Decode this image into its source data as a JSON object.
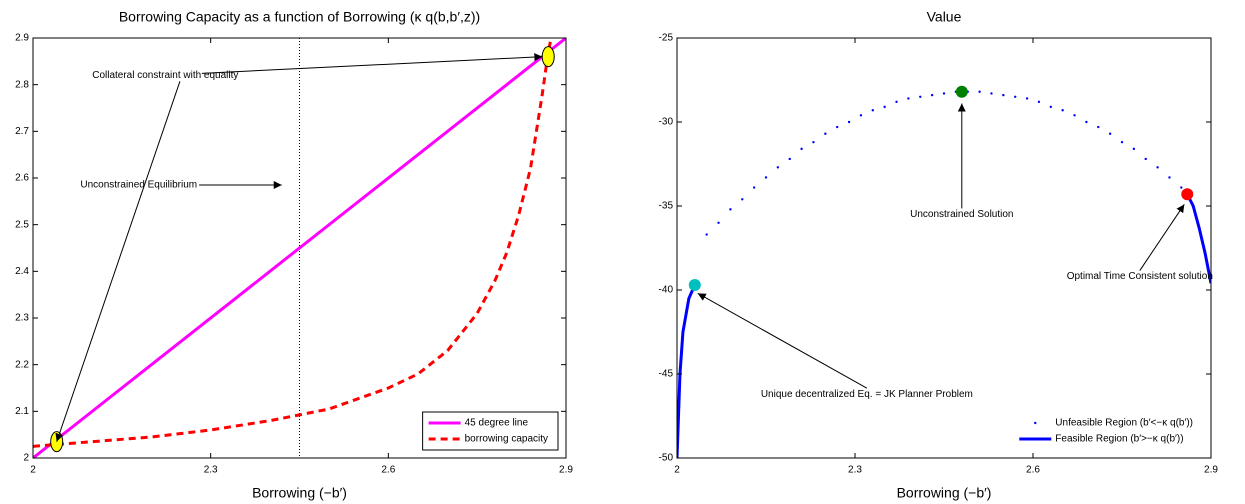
{
  "chart_data": [
    {
      "type": "line",
      "title": "Borrowing Capacity as a function of Borrowing (κ q(b,b′,z))",
      "xlabel": "Borrowing (−b′)",
      "xlim": [
        2,
        2.9
      ],
      "xticks": [
        2,
        2.3,
        2.6,
        2.9
      ],
      "ylim": [
        2,
        2.9
      ],
      "yticks": [
        2,
        2.1,
        2.2,
        2.3,
        2.4,
        2.5,
        2.6,
        2.7,
        2.8,
        2.9
      ],
      "legend": "lower right",
      "series": [
        {
          "name": "45 degree line",
          "color": "#ff00ff",
          "linestyle": "-",
          "x": [
            2,
            2.9
          ],
          "values": [
            2,
            2.9
          ]
        },
        {
          "name": "borrowing capacity",
          "color": "#ff0000",
          "linestyle": "--",
          "x": [
            2,
            2.05,
            2.1,
            2.2,
            2.3,
            2.4,
            2.5,
            2.6,
            2.65,
            2.7,
            2.75,
            2.78,
            2.8,
            2.82,
            2.84,
            2.86,
            2.87,
            2.875
          ],
          "values": [
            2.025,
            2.03,
            2.035,
            2.045,
            2.06,
            2.08,
            2.105,
            2.15,
            2.18,
            2.23,
            2.31,
            2.38,
            2.44,
            2.52,
            2.62,
            2.78,
            2.87,
            2.9
          ]
        }
      ],
      "vlines": [
        2.45
      ],
      "markers": [
        {
          "x": 2.04,
          "y": 2.035,
          "color": "#ffff00"
        },
        {
          "x": 2.87,
          "y": 2.86,
          "color": "#ffff00"
        }
      ],
      "annotations": [
        {
          "text": "Collateral constraint with equality",
          "xytext": [
            2.1,
            2.82
          ],
          "xy": [
            [
              2.04,
              2.035
            ],
            [
              2.86,
              2.86
            ]
          ]
        },
        {
          "text": "Unconstrained Equilibrium",
          "xytext": [
            2.08,
            2.585
          ],
          "xy": [
            [
              2.42,
              2.585
            ]
          ]
        }
      ]
    },
    {
      "type": "line",
      "title": "Value",
      "xlabel": "Borrowing (−b′)",
      "xlim": [
        2,
        2.9
      ],
      "xticks": [
        2,
        2.3,
        2.6,
        2.9
      ],
      "ylim": [
        -50,
        -25
      ],
      "yticks": [
        -50,
        -45,
        -40,
        -35,
        -30,
        -25
      ],
      "legend": "lower right",
      "series": [
        {
          "name": "Unfeasible Region (b′<−κ q(b′))",
          "color": "#0000ff",
          "linestyle": ".",
          "x": [
            2.05,
            2.07,
            2.09,
            2.11,
            2.13,
            2.15,
            2.17,
            2.19,
            2.21,
            2.23,
            2.25,
            2.27,
            2.29,
            2.31,
            2.33,
            2.35,
            2.37,
            2.39,
            2.41,
            2.43,
            2.45,
            2.47,
            2.49,
            2.51,
            2.53,
            2.55,
            2.57,
            2.59,
            2.61,
            2.63,
            2.65,
            2.67,
            2.69,
            2.71,
            2.73,
            2.75,
            2.77,
            2.79,
            2.81,
            2.83,
            2.85
          ],
          "values": [
            -36.7,
            -36.0,
            -35.2,
            -34.6,
            -33.9,
            -33.3,
            -32.7,
            -32.2,
            -31.6,
            -31.2,
            -30.7,
            -30.3,
            -30.0,
            -29.6,
            -29.3,
            -29.1,
            -28.8,
            -28.6,
            -28.5,
            -28.4,
            -28.3,
            -28.2,
            -28.2,
            -28.2,
            -28.3,
            -28.4,
            -28.5,
            -28.6,
            -28.8,
            -29.1,
            -29.3,
            -29.6,
            -30.0,
            -30.3,
            -30.7,
            -31.2,
            -31.6,
            -32.2,
            -32.7,
            -33.3,
            -33.9
          ]
        },
        {
          "name": "Feasible Region (b′>−κ q(b′))",
          "color": "#0000ff",
          "linestyle": "-",
          "x": [
            2,
            2.005,
            2.01,
            2.02,
            2.03,
            2.45,
            2.86,
            2.87,
            2.88,
            2.89,
            2.9
          ],
          "values": [
            -50,
            -45,
            -42.5,
            -40.5,
            -39.7,
            null,
            -34.3,
            -35,
            -36.3,
            -37.8,
            -39.6
          ]
        }
      ],
      "markers": [
        {
          "x": 2.03,
          "y": -39.7,
          "color": "#00bfbf"
        },
        {
          "x": 2.48,
          "y": -28.2,
          "color": "#008000"
        },
        {
          "x": 2.86,
          "y": -34.3,
          "color": "#ff0000"
        }
      ],
      "annotations": [
        {
          "text": "Unconstrained Solution",
          "xytext": [
            2.48,
            -35.5
          ],
          "xy": [
            [
              2.48,
              -28.9
            ]
          ]
        },
        {
          "text": "Unique decentralized Eq. = JK Planner Problem",
          "xytext": [
            2.32,
            -46.2
          ],
          "xy": [
            [
              2.035,
              -40.2
            ]
          ]
        },
        {
          "text": "Optimal Time Consistent solution",
          "xytext": [
            2.78,
            -39.2
          ],
          "xy": [
            [
              2.855,
              -34.9
            ]
          ]
        }
      ]
    }
  ]
}
